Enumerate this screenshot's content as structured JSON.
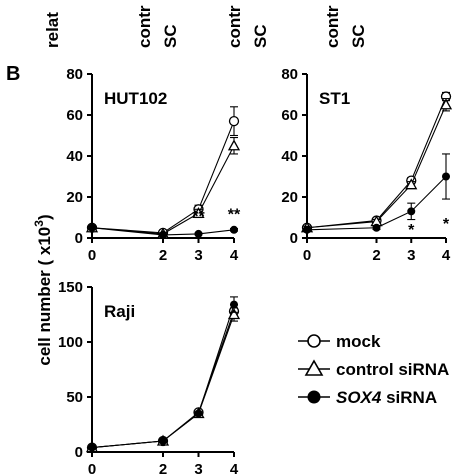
{
  "top_labels": [
    "relat",
    "contr",
    "SC",
    "contr",
    "SC",
    "contr",
    "SC"
  ],
  "panel_label": "B",
  "y_axis_label": "cell number ( x10",
  "y_axis_label_sup": "3",
  "y_axis_label_end": ")",
  "legend": {
    "mock": "mock",
    "control": "control siRNA",
    "sox4_gene": "SOX4",
    "sox4_rest": " siRNA"
  },
  "chart_data": [
    {
      "type": "line",
      "title": "HUT102",
      "x": [
        0,
        2,
        3,
        4
      ],
      "ylim": [
        0,
        80
      ],
      "yticks": [
        0,
        20,
        40,
        60,
        80
      ],
      "series": [
        {
          "name": "mock",
          "marker": "circle-open",
          "values": [
            5,
            2.5,
            14,
            57
          ],
          "errors": [
            0.8,
            0.6,
            2,
            7
          ]
        },
        {
          "name": "control siRNA",
          "marker": "triangle-open",
          "values": [
            5,
            2,
            12,
            45
          ],
          "errors": [
            0.8,
            0.5,
            2,
            4
          ]
        },
        {
          "name": "SOX4 siRNA",
          "marker": "circle-filled",
          "values": [
            5,
            1.5,
            2,
            4
          ],
          "errors": [
            0.5,
            0.3,
            0.4,
            0.6
          ]
        }
      ],
      "annotations": [
        {
          "x": 3,
          "y": 8,
          "text": "**"
        },
        {
          "x": 4,
          "y": 9,
          "text": "**"
        }
      ]
    },
    {
      "type": "line",
      "title": "ST1",
      "x": [
        0,
        2,
        3,
        4
      ],
      "ylim": [
        0,
        80
      ],
      "yticks": [
        0,
        20,
        40,
        60,
        80
      ],
      "series": [
        {
          "name": "mock",
          "marker": "circle-open",
          "values": [
            5,
            8.5,
            28,
            69
          ],
          "errors": [
            0.8,
            1,
            1.5,
            2
          ]
        },
        {
          "name": "control siRNA",
          "marker": "triangle-open",
          "values": [
            5,
            8,
            26,
            65
          ],
          "errors": [
            0.8,
            1,
            1.5,
            3
          ]
        },
        {
          "name": "SOX4 siRNA",
          "marker": "circle-filled",
          "values": [
            4,
            5,
            13,
            30
          ],
          "errors": [
            0.5,
            0.8,
            4,
            11
          ]
        }
      ],
      "annotations": [
        {
          "x": 3,
          "y": 1.5,
          "text": "*"
        },
        {
          "x": 4,
          "y": 4.5,
          "text": "*"
        }
      ]
    },
    {
      "type": "line",
      "title": "Raji",
      "x": [
        0,
        2,
        3,
        4
      ],
      "ylim": [
        0,
        150
      ],
      "yticks": [
        0,
        50,
        100,
        150
      ],
      "series": [
        {
          "name": "mock",
          "marker": "circle-open",
          "values": [
            4,
            10,
            36,
            128
          ],
          "errors": [
            0.6,
            1,
            1.5,
            6
          ]
        },
        {
          "name": "control siRNA",
          "marker": "triangle-open",
          "values": [
            4,
            10,
            35,
            125
          ],
          "errors": [
            0.6,
            1,
            1.5,
            6
          ]
        },
        {
          "name": "SOX4 siRNA",
          "marker": "circle-filled",
          "values": [
            4,
            10,
            35,
            134
          ],
          "errors": [
            0.6,
            1,
            1.5,
            7
          ]
        }
      ],
      "annotations": []
    }
  ]
}
